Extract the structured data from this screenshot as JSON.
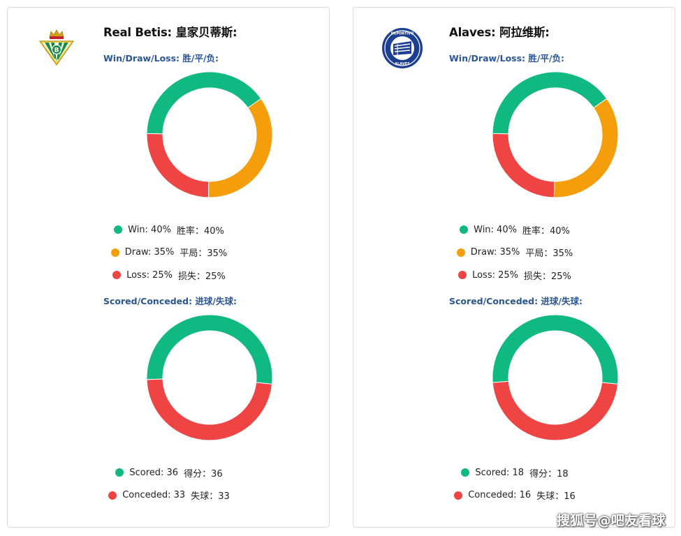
{
  "colors": {
    "win": "#10b981",
    "draw": "#f59e0b",
    "loss": "#ef4444",
    "scored": "#10b981",
    "conceded": "#ef4444",
    "section_title": "#2a5599"
  },
  "watermark": "搜狐号@吧友看球",
  "teams": [
    {
      "title": "Real Betis: 皇家贝蒂斯:",
      "logo_icon": "real-betis-crest-icon",
      "wdl_section_title": "Win/Draw/Loss: 胜/平/负:",
      "goals_section_title": "Scored/Conceded: 进球/失球:",
      "wdl_legend": [
        {
          "label": "Win: 40%",
          "label_cn": "胜率：40%"
        },
        {
          "label": "Draw: 35%",
          "label_cn": "平局：35%"
        },
        {
          "label": "Loss: 25%",
          "label_cn": "损失：25%"
        }
      ],
      "goals_legend": [
        {
          "label": "Scored: 36",
          "label_cn": "得分：36"
        },
        {
          "label": "Conceded: 33",
          "label_cn": "失球：33"
        }
      ]
    },
    {
      "title": "Alaves: 阿拉维斯:",
      "logo_icon": "alaves-crest-icon",
      "wdl_section_title": "Win/Draw/Loss: 胜/平/负:",
      "goals_section_title": "Scored/Conceded: 进球/失球:",
      "wdl_legend": [
        {
          "label": "Win: 40%",
          "label_cn": "胜率：40%"
        },
        {
          "label": "Draw: 35%",
          "label_cn": "平局：35%"
        },
        {
          "label": "Loss: 25%",
          "label_cn": "损失：25%"
        }
      ],
      "goals_legend": [
        {
          "label": "Scored: 18",
          "label_cn": "得分：18"
        },
        {
          "label": "Conceded: 16",
          "label_cn": "失球：16"
        }
      ]
    }
  ],
  "chart_data": [
    {
      "type": "pie",
      "title": "Win/Draw/Loss: 胜/平/负:",
      "team": "Real Betis",
      "categories": [
        "Win",
        "Draw",
        "Loss"
      ],
      "values": [
        40,
        35,
        25
      ],
      "unit": "%",
      "legend": "bottom"
    },
    {
      "type": "pie",
      "title": "Scored/Conceded: 进球/失球:",
      "team": "Real Betis",
      "categories": [
        "Scored",
        "Conceded"
      ],
      "values": [
        36,
        33
      ],
      "legend": "bottom"
    },
    {
      "type": "pie",
      "title": "Win/Draw/Loss: 胜/平/负:",
      "team": "Alaves",
      "categories": [
        "Win",
        "Draw",
        "Loss"
      ],
      "values": [
        40,
        35,
        25
      ],
      "unit": "%",
      "legend": "bottom"
    },
    {
      "type": "pie",
      "title": "Scored/Conceded: 进球/失球:",
      "team": "Alaves",
      "categories": [
        "Scored",
        "Conceded"
      ],
      "values": [
        18,
        16
      ],
      "legend": "bottom"
    }
  ]
}
